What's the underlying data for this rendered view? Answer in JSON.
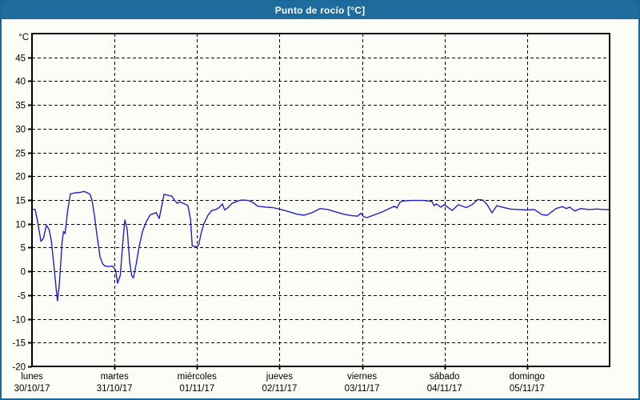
{
  "window": {
    "title": "Punto de rocío [°C]"
  },
  "colors": {
    "titlebar_bg": "#1e6b9e",
    "title_text": "#ffffff",
    "frame_border": "#1c679a",
    "chart_bg": "#fdfdf7",
    "grid": "#000000",
    "axis": "#000000",
    "line": "#2020cc"
  },
  "chart_data": {
    "type": "line",
    "title": "Punto de rocío [°C]",
    "ylabel": "°C",
    "xlabel": "",
    "ylim": [
      -20,
      50
    ],
    "y_ticks": [
      45,
      40,
      35,
      30,
      25,
      20,
      15,
      10,
      5,
      0,
      -5,
      -10,
      -15,
      -20
    ],
    "x_hours_range": [
      0,
      168
    ],
    "x_day_ticks_hours": [
      0,
      24,
      48,
      72,
      96,
      120,
      144
    ],
    "x_day_labels": [
      {
        "name": "lunes",
        "date": "30/10/17"
      },
      {
        "name": "martes",
        "date": "31/10/17"
      },
      {
        "name": "miércoles",
        "date": "01/11/17"
      },
      {
        "name": "jueves",
        "date": "02/11/17"
      },
      {
        "name": "viernes",
        "date": "03/11/17"
      },
      {
        "name": "sábado",
        "date": "04/11/17"
      },
      {
        "name": "domingo",
        "date": "05/11/17"
      }
    ],
    "grid": "dashed",
    "legend_position": "none",
    "series": [
      {
        "name": "Punto de rocío",
        "color": "#2020cc",
        "points": [
          [
            0,
            13.1
          ],
          [
            0.9,
            13
          ],
          [
            1.5,
            11
          ],
          [
            2.6,
            6.3
          ],
          [
            3.3,
            6.9
          ],
          [
            4.2,
            9.7
          ],
          [
            5,
            8.7
          ],
          [
            5.6,
            6.5
          ],
          [
            6.4,
            1
          ],
          [
            7,
            -3.5
          ],
          [
            7.4,
            -6.2
          ],
          [
            7.9,
            -3
          ],
          [
            8.8,
            6.5
          ],
          [
            9.2,
            8.4
          ],
          [
            9.6,
            7.9
          ],
          [
            10.4,
            13
          ],
          [
            11.2,
            16.3
          ],
          [
            12.5,
            16.5
          ],
          [
            14,
            16.6
          ],
          [
            15.1,
            16.8
          ],
          [
            16.2,
            16.5
          ],
          [
            16.9,
            16.2
          ],
          [
            17.5,
            14.8
          ],
          [
            18.1,
            12
          ],
          [
            19,
            7
          ],
          [
            19.8,
            3
          ],
          [
            20.6,
            1.5
          ],
          [
            21.3,
            1.1
          ],
          [
            22.4,
            1
          ],
          [
            23.4,
            1.1
          ],
          [
            24.3,
            0.3
          ],
          [
            24.9,
            -2.5
          ],
          [
            25.7,
            -0.8
          ],
          [
            26.4,
            6
          ],
          [
            27,
            10.8
          ],
          [
            27.7,
            8.8
          ],
          [
            28.4,
            2
          ],
          [
            29,
            -0.9
          ],
          [
            29.5,
            -1.4
          ],
          [
            30.3,
            1.5
          ],
          [
            31.1,
            5
          ],
          [
            32.1,
            8.3
          ],
          [
            33.2,
            10.4
          ],
          [
            34.4,
            11.9
          ],
          [
            35.3,
            12.1
          ],
          [
            36.1,
            12.4
          ],
          [
            37,
            11.1
          ],
          [
            38.4,
            16.2
          ],
          [
            39.5,
            16
          ],
          [
            40.7,
            15.8
          ],
          [
            41.4,
            15
          ],
          [
            42.3,
            14.3
          ],
          [
            43,
            14.6
          ],
          [
            44.9,
            14
          ],
          [
            45.4,
            13.7
          ],
          [
            46.1,
            11
          ],
          [
            46.6,
            5.3
          ],
          [
            48,
            5.2
          ],
          [
            48.5,
            5.6
          ],
          [
            49.2,
            8
          ],
          [
            50,
            10
          ],
          [
            51.2,
            11.8
          ],
          [
            52.3,
            12.8
          ],
          [
            53.5,
            13
          ],
          [
            54.4,
            13.4
          ],
          [
            55.4,
            14.2
          ],
          [
            56,
            12.9
          ],
          [
            57,
            13.4
          ],
          [
            58.2,
            14.3
          ],
          [
            59.9,
            14.8
          ],
          [
            61,
            15
          ],
          [
            63,
            14.9
          ],
          [
            64.4,
            14.4
          ],
          [
            65.6,
            13.7
          ],
          [
            68,
            13.5
          ],
          [
            70,
            13.4
          ],
          [
            72,
            13.1
          ],
          [
            74.5,
            12.6
          ],
          [
            77.2,
            12
          ],
          [
            79.1,
            11.8
          ],
          [
            81.4,
            12.3
          ],
          [
            83.8,
            13.2
          ],
          [
            86.1,
            13
          ],
          [
            88.4,
            12.5
          ],
          [
            90.7,
            12
          ],
          [
            93.1,
            11.7
          ],
          [
            94.7,
            11.6
          ],
          [
            95.6,
            12.2
          ],
          [
            96.5,
            11.5
          ],
          [
            97.4,
            11.3
          ],
          [
            99.3,
            11.8
          ],
          [
            101.9,
            12.5
          ],
          [
            104.2,
            13.3
          ],
          [
            105.4,
            13.7
          ],
          [
            106.1,
            13.3
          ],
          [
            107,
            14.5
          ],
          [
            107.8,
            14.8
          ],
          [
            110.5,
            14.9
          ],
          [
            114,
            14.9
          ],
          [
            116.3,
            14.7
          ],
          [
            117,
            13.8
          ],
          [
            117.6,
            14.2
          ],
          [
            118.9,
            13.5
          ],
          [
            120,
            14
          ],
          [
            122.2,
            12.8
          ],
          [
            124,
            14
          ],
          [
            126.3,
            13.4
          ],
          [
            128,
            14
          ],
          [
            129.6,
            15.1
          ],
          [
            131.1,
            15
          ],
          [
            132.4,
            14
          ],
          [
            133.8,
            12.3
          ],
          [
            135.2,
            13.8
          ],
          [
            136.8,
            13.5
          ],
          [
            139.1,
            13.1
          ],
          [
            141.5,
            13
          ],
          [
            143.8,
            12.9
          ],
          [
            146.1,
            13
          ],
          [
            148.4,
            11.9
          ],
          [
            149.9,
            11.8
          ],
          [
            152.4,
            13.2
          ],
          [
            154.3,
            13.6
          ],
          [
            155.4,
            13.2
          ],
          [
            156.4,
            13.5
          ],
          [
            157.8,
            12.7
          ],
          [
            159.6,
            13.2
          ],
          [
            161.9,
            13
          ],
          [
            164.3,
            13.1
          ],
          [
            166.4,
            13
          ],
          [
            168,
            13
          ]
        ]
      }
    ]
  }
}
